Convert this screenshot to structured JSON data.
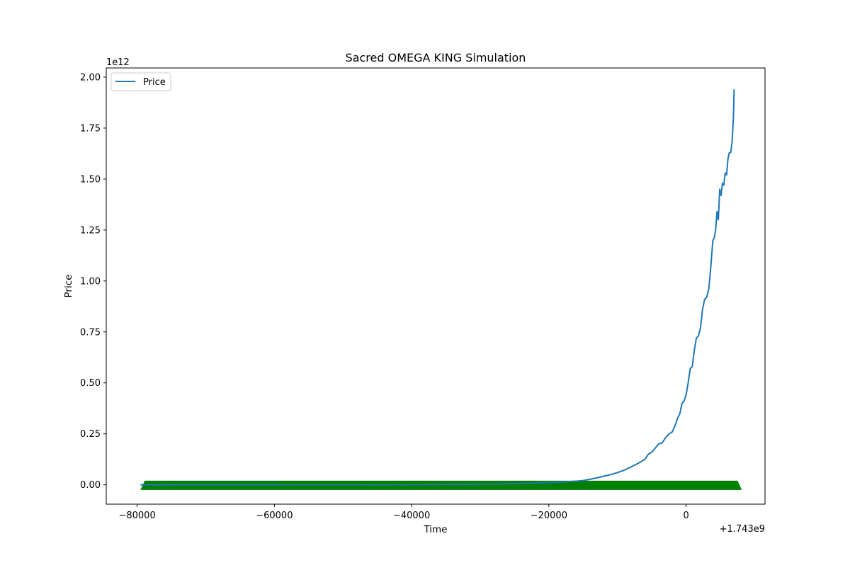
{
  "chart_data": {
    "type": "line",
    "title": "Sacred OMEGA KING Simulation",
    "xlabel": "Time",
    "ylabel": "Price",
    "x_offset_text": "+1.743e9",
    "y_scale_text": "1e12",
    "xlim": [
      -84500,
      11500
    ],
    "ylim": [
      -0.095,
      2.045
    ],
    "x_ticks": [
      -80000,
      -60000,
      -40000,
      -20000,
      0
    ],
    "x_tick_labels": [
      "−80000",
      "−60000",
      "−40000",
      "−20000",
      "0"
    ],
    "y_ticks": [
      0.0,
      0.25,
      0.5,
      0.75,
      1.0,
      1.25,
      1.5,
      1.75,
      2.0
    ],
    "y_tick_labels": [
      "0.00",
      "0.25",
      "0.50",
      "0.75",
      "1.00",
      "1.25",
      "1.50",
      "1.75",
      "2.00"
    ],
    "legend": {
      "position": "upper-left",
      "entries": [
        "Price"
      ]
    },
    "grid": false,
    "colors": {
      "price": "#1f77b4",
      "band": "#008000"
    },
    "series": [
      {
        "name": "Price",
        "x": [
          -79500,
          -60000,
          -40000,
          -30000,
          -25000,
          -22000,
          -20000,
          -18000,
          -16000,
          -15000,
          -14000,
          -13000,
          -12000,
          -11000,
          -10000,
          -9000,
          -8000,
          -7000,
          -6000,
          -5500,
          -5000,
          -4500,
          -4000,
          -3500,
          -3000,
          -2500,
          -2000,
          -1500,
          -1200,
          -900,
          -600,
          -300,
          0,
          300,
          600,
          900,
          1200,
          1500,
          1800,
          2100,
          2400,
          2700,
          3000,
          3300,
          3600,
          3900,
          4100,
          4300,
          4500,
          4700,
          4900,
          5100,
          5300,
          5500,
          5700,
          5900,
          6100,
          6300,
          6500,
          6700,
          6900,
          7000
        ],
        "values": [
          0.0,
          0.0003,
          0.0013,
          0.0032,
          0.0055,
          0.0085,
          0.011,
          0.014,
          0.018,
          0.021,
          0.027,
          0.034,
          0.042,
          0.05,
          0.06,
          0.072,
          0.088,
          0.105,
          0.125,
          0.15,
          0.16,
          0.18,
          0.2,
          0.205,
          0.23,
          0.25,
          0.26,
          0.3,
          0.33,
          0.35,
          0.4,
          0.41,
          0.44,
          0.5,
          0.57,
          0.58,
          0.66,
          0.72,
          0.73,
          0.77,
          0.86,
          0.91,
          0.92,
          0.96,
          1.07,
          1.2,
          1.21,
          1.25,
          1.34,
          1.3,
          1.45,
          1.42,
          1.48,
          1.47,
          1.53,
          1.52,
          1.6,
          1.63,
          1.63,
          1.68,
          1.8,
          1.94
        ]
      }
    ],
    "band": {
      "x_start": -79000,
      "x_end": 7500,
      "y_bottom": -0.025,
      "y_top": 0.02
    }
  }
}
